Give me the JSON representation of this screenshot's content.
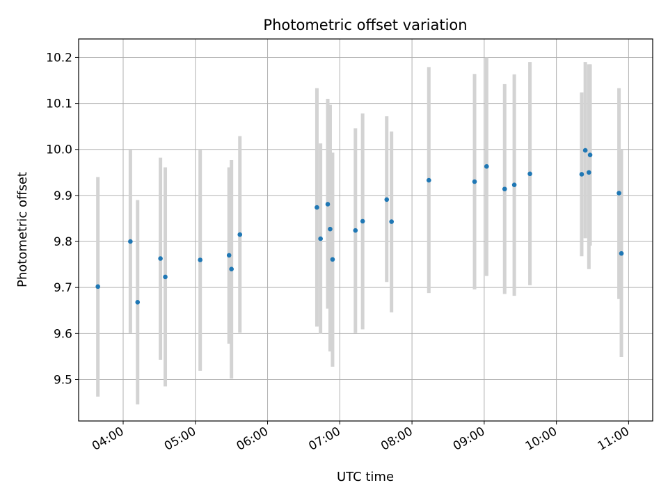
{
  "chart_data": {
    "type": "scatter",
    "title": "Photometric offset variation",
    "xlabel": "UTC time",
    "ylabel": "Photometric offset",
    "x_ticks": [
      "04:00",
      "05:00",
      "06:00",
      "07:00",
      "08:00",
      "09:00",
      "10:00",
      "11:00"
    ],
    "y_ticks": [
      "9.5",
      "9.6",
      "9.7",
      "9.8",
      "9.9",
      "10.0",
      "10.1",
      "10.2"
    ],
    "xlim": [
      "03:23",
      "11:20"
    ],
    "ylim": [
      9.41,
      10.24
    ],
    "grid": true,
    "marker_color": "#1f77b4",
    "errorbar_color": "#d3d3d3",
    "points": [
      {
        "time": "03:39",
        "y": 9.702,
        "lo": 9.463,
        "hi": 9.94
      },
      {
        "time": "04:06",
        "y": 9.8,
        "lo": 9.601,
        "hi": 10.0
      },
      {
        "time": "04:12",
        "y": 9.668,
        "lo": 9.446,
        "hi": 9.89
      },
      {
        "time": "04:31",
        "y": 9.763,
        "lo": 9.543,
        "hi": 9.982
      },
      {
        "time": "04:35",
        "y": 9.723,
        "lo": 9.485,
        "hi": 9.961
      },
      {
        "time": "05:04",
        "y": 9.76,
        "lo": 9.519,
        "hi": 10.0
      },
      {
        "time": "05:28",
        "y": 9.77,
        "lo": 9.578,
        "hi": 9.961
      },
      {
        "time": "05:30",
        "y": 9.74,
        "lo": 9.502,
        "hi": 9.977
      },
      {
        "time": "05:37",
        "y": 9.815,
        "lo": 9.602,
        "hi": 10.029
      },
      {
        "time": "06:41",
        "y": 9.874,
        "lo": 9.615,
        "hi": 10.133
      },
      {
        "time": "06:44",
        "y": 9.806,
        "lo": 9.599,
        "hi": 10.013
      },
      {
        "time": "06:50",
        "y": 9.881,
        "lo": 9.654,
        "hi": 10.11
      },
      {
        "time": "06:52",
        "y": 9.827,
        "lo": 9.561,
        "hi": 10.097
      },
      {
        "time": "06:54",
        "y": 9.761,
        "lo": 9.528,
        "hi": 9.993
      },
      {
        "time": "07:13",
        "y": 9.824,
        "lo": 9.601,
        "hi": 10.046
      },
      {
        "time": "07:19",
        "y": 9.844,
        "lo": 9.609,
        "hi": 10.078
      },
      {
        "time": "07:39",
        "y": 9.891,
        "lo": 9.712,
        "hi": 10.072
      },
      {
        "time": "07:43",
        "y": 9.843,
        "lo": 9.646,
        "hi": 10.039
      },
      {
        "time": "08:14",
        "y": 9.933,
        "lo": 9.688,
        "hi": 10.179
      },
      {
        "time": "08:52",
        "y": 9.93,
        "lo": 9.696,
        "hi": 10.164
      },
      {
        "time": "09:02",
        "y": 9.963,
        "lo": 9.725,
        "hi": 10.2
      },
      {
        "time": "09:17",
        "y": 9.914,
        "lo": 9.686,
        "hi": 10.142
      },
      {
        "time": "09:25",
        "y": 9.923,
        "lo": 9.682,
        "hi": 10.163
      },
      {
        "time": "09:38",
        "y": 9.947,
        "lo": 9.705,
        "hi": 10.19
      },
      {
        "time": "10:21",
        "y": 9.946,
        "lo": 9.768,
        "hi": 10.124
      },
      {
        "time": "10:24",
        "y": 9.998,
        "lo": 9.807,
        "hi": 10.19
      },
      {
        "time": "10:27",
        "y": 9.95,
        "lo": 9.74,
        "hi": 10.185
      },
      {
        "time": "10:28",
        "y": 9.988,
        "lo": 9.791,
        "hi": 10.185
      },
      {
        "time": "10:52",
        "y": 9.905,
        "lo": 9.675,
        "hi": 10.133
      },
      {
        "time": "10:54",
        "y": 9.774,
        "lo": 9.549,
        "hi": 10.0
      }
    ]
  }
}
